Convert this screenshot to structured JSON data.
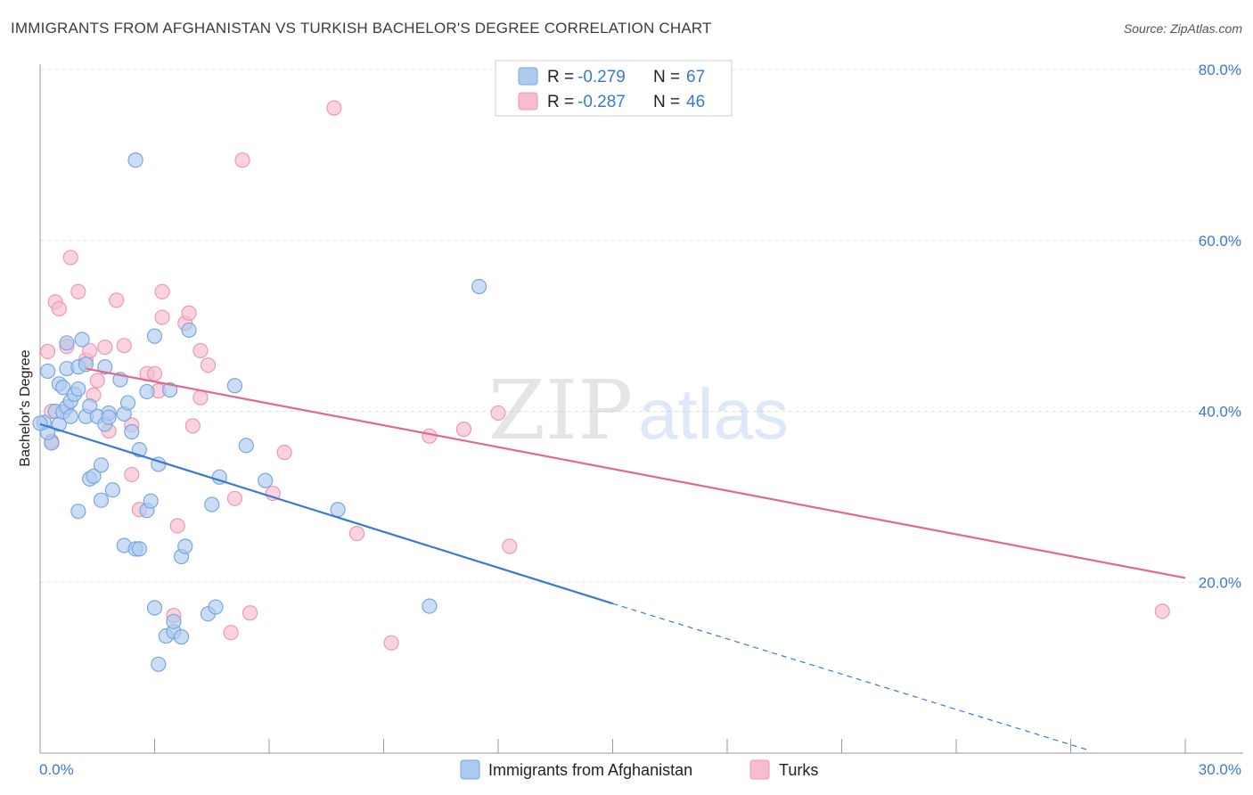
{
  "header": {
    "title": "IMMIGRANTS FROM AFGHANISTAN VS TURKISH BACHELOR'S DEGREE CORRELATION CHART",
    "source": "Source: ZipAtlas.com"
  },
  "watermark": {
    "zip": "ZIP",
    "atlas": "atlas"
  },
  "colors": {
    "blue": "#3b78d0",
    "blue_fill": "#aecbef",
    "pink": "#e06894",
    "pink_fill": "#f7bccd",
    "grid": "#dddddd",
    "tick_text": "#3b78d0"
  },
  "chart_data": {
    "type": "scatter",
    "title": "IMMIGRANTS FROM AFGHANISTAN VS TURKISH BACHELOR'S DEGREE CORRELATION CHART",
    "xlabel": "",
    "ylabel": "Bachelor's Degree",
    "xlim": [
      0,
      30
    ],
    "ylim": [
      0,
      80
    ],
    "x_tick_labels": [
      "0.0%",
      "30.0%"
    ],
    "y_ticks": [
      20,
      40,
      60,
      80
    ],
    "y_tick_labels": [
      "20.0%",
      "40.0%",
      "60.0%",
      "80.0%"
    ],
    "grid": true,
    "legend_position": "top-center",
    "legend": [
      {
        "series": "Immigrants from Afghanistan",
        "r_label": "R = ",
        "r": "-0.279",
        "n_label": "N = ",
        "n": "67"
      },
      {
        "series": "Turks",
        "r_label": "R = ",
        "r": "-0.287",
        "n_label": "N = ",
        "n": "46"
      }
    ],
    "series": [
      {
        "name": "Immigrants from Afghanistan",
        "color": "#3b78d0",
        "trendline": {
          "x": [
            0,
            15
          ],
          "y": [
            38.5,
            17.5
          ],
          "dashed_extension_to": [
            27.5,
            0.3
          ]
        },
        "points": [
          [
            0.1,
            38.7
          ],
          [
            0.3,
            36.3
          ],
          [
            0.2,
            37.5
          ],
          [
            0.2,
            44.7
          ],
          [
            0.4,
            40.0
          ],
          [
            0.5,
            38.5
          ],
          [
            0.5,
            43.2
          ],
          [
            0.6,
            42.8
          ],
          [
            0.6,
            39.9
          ],
          [
            0.7,
            40.5
          ],
          [
            0.7,
            48.0
          ],
          [
            0.7,
            45.0
          ],
          [
            0.8,
            41.2
          ],
          [
            0.8,
            39.4
          ],
          [
            0.9,
            42.0
          ],
          [
            1.0,
            45.2
          ],
          [
            1.0,
            42.6
          ],
          [
            1.0,
            28.3
          ],
          [
            1.1,
            48.4
          ],
          [
            1.2,
            39.4
          ],
          [
            1.2,
            45.5
          ],
          [
            1.3,
            32.1
          ],
          [
            1.3,
            40.6
          ],
          [
            1.4,
            32.4
          ],
          [
            1.5,
            39.4
          ],
          [
            1.6,
            33.7
          ],
          [
            1.6,
            29.6
          ],
          [
            1.7,
            45.2
          ],
          [
            1.7,
            38.5
          ],
          [
            1.8,
            39.8
          ],
          [
            1.8,
            39.3
          ],
          [
            1.9,
            30.8
          ],
          [
            2.1,
            43.7
          ],
          [
            2.2,
            39.7
          ],
          [
            2.2,
            24.3
          ],
          [
            2.3,
            41.0
          ],
          [
            2.4,
            37.6
          ],
          [
            2.5,
            23.9
          ],
          [
            2.5,
            69.4
          ],
          [
            2.6,
            35.5
          ],
          [
            2.6,
            23.9
          ],
          [
            2.8,
            42.3
          ],
          [
            2.8,
            28.4
          ],
          [
            2.9,
            29.5
          ],
          [
            3.0,
            17.0
          ],
          [
            3.0,
            48.8
          ],
          [
            3.1,
            33.8
          ],
          [
            3.1,
            10.4
          ],
          [
            3.3,
            13.7
          ],
          [
            3.4,
            42.5
          ],
          [
            3.5,
            14.2
          ],
          [
            3.5,
            15.4
          ],
          [
            3.7,
            13.6
          ],
          [
            3.7,
            23.0
          ],
          [
            3.8,
            24.2
          ],
          [
            3.9,
            49.5
          ],
          [
            4.4,
            16.3
          ],
          [
            4.5,
            29.1
          ],
          [
            4.6,
            17.1
          ],
          [
            4.7,
            32.3
          ],
          [
            5.1,
            43.0
          ],
          [
            5.4,
            36.0
          ],
          [
            5.9,
            31.9
          ],
          [
            7.8,
            28.5
          ],
          [
            10.2,
            17.2
          ],
          [
            11.5,
            54.6
          ],
          [
            0.0,
            38.6
          ]
        ]
      },
      {
        "name": "Turks",
        "color": "#e06894",
        "trendline": {
          "x": [
            1.2,
            30
          ],
          "y": [
            45.0,
            20.5
          ]
        },
        "points": [
          [
            0.2,
            47.0
          ],
          [
            0.3,
            36.5
          ],
          [
            0.3,
            40.0
          ],
          [
            0.4,
            52.8
          ],
          [
            0.5,
            52.0
          ],
          [
            0.7,
            47.6
          ],
          [
            0.8,
            58.0
          ],
          [
            1.0,
            54.0
          ],
          [
            1.2,
            46.0
          ],
          [
            1.3,
            47.1
          ],
          [
            1.4,
            41.9
          ],
          [
            1.5,
            43.6
          ],
          [
            1.7,
            47.5
          ],
          [
            1.8,
            37.7
          ],
          [
            2.0,
            53.0
          ],
          [
            2.2,
            47.7
          ],
          [
            2.4,
            38.4
          ],
          [
            2.4,
            32.6
          ],
          [
            2.6,
            28.5
          ],
          [
            2.8,
            44.4
          ],
          [
            3.0,
            44.4
          ],
          [
            3.1,
            42.4
          ],
          [
            3.2,
            51.0
          ],
          [
            3.2,
            54.0
          ],
          [
            3.5,
            16.1
          ],
          [
            3.6,
            26.6
          ],
          [
            3.8,
            50.3
          ],
          [
            3.9,
            51.5
          ],
          [
            4.0,
            38.3
          ],
          [
            4.2,
            47.1
          ],
          [
            4.2,
            41.6
          ],
          [
            4.4,
            45.4
          ],
          [
            5.0,
            14.1
          ],
          [
            5.1,
            29.8
          ],
          [
            5.3,
            69.4
          ],
          [
            5.5,
            16.4
          ],
          [
            6.1,
            30.4
          ],
          [
            6.4,
            35.2
          ],
          [
            7.7,
            75.5
          ],
          [
            8.3,
            25.7
          ],
          [
            9.2,
            12.9
          ],
          [
            10.2,
            37.1
          ],
          [
            11.1,
            37.9
          ],
          [
            12.0,
            39.8
          ],
          [
            12.3,
            24.2
          ],
          [
            29.4,
            16.6
          ]
        ]
      }
    ]
  }
}
